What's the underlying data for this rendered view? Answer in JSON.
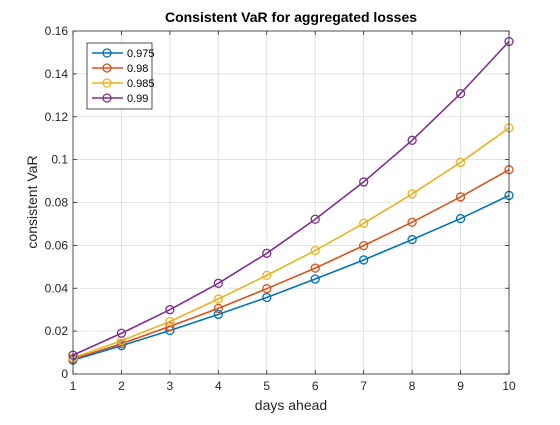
{
  "chart_data": {
    "type": "line",
    "title": "Consistent VaR for aggregated losses",
    "xlabel": "days ahead",
    "ylabel": "consistent VaR",
    "xlim": [
      1,
      10
    ],
    "ylim": [
      0,
      0.16
    ],
    "x_ticks": [
      "1",
      "2",
      "3",
      "4",
      "5",
      "6",
      "7",
      "8",
      "9",
      "10"
    ],
    "y_ticks": [
      "0",
      "0.02",
      "0.04",
      "0.06",
      "0.08",
      "0.1",
      "0.12",
      "0.14",
      "0.16"
    ],
    "grid": true,
    "legend_position": "top-left",
    "marker": "circle",
    "x": [
      1,
      2,
      3,
      4,
      5,
      6,
      7,
      8,
      9,
      10
    ],
    "series": [
      {
        "name": "0.975",
        "color": "#0072BD",
        "values": [
          0.0065,
          0.0132,
          0.0203,
          0.0278,
          0.0357,
          0.0443,
          0.0532,
          0.0627,
          0.0725,
          0.0833
        ]
      },
      {
        "name": "0.98",
        "color": "#D95319",
        "values": [
          0.007,
          0.0141,
          0.0222,
          0.0306,
          0.0398,
          0.0494,
          0.0599,
          0.0708,
          0.0826,
          0.0953
        ]
      },
      {
        "name": "0.985",
        "color": "#EDB120",
        "values": [
          0.0075,
          0.0155,
          0.0245,
          0.035,
          0.046,
          0.0576,
          0.0703,
          0.084,
          0.0987,
          0.1148
        ]
      },
      {
        "name": "0.99",
        "color": "#7E2F8E",
        "values": [
          0.0088,
          0.019,
          0.03,
          0.0423,
          0.0563,
          0.0722,
          0.0896,
          0.109,
          0.1308,
          0.1551
        ]
      }
    ]
  }
}
